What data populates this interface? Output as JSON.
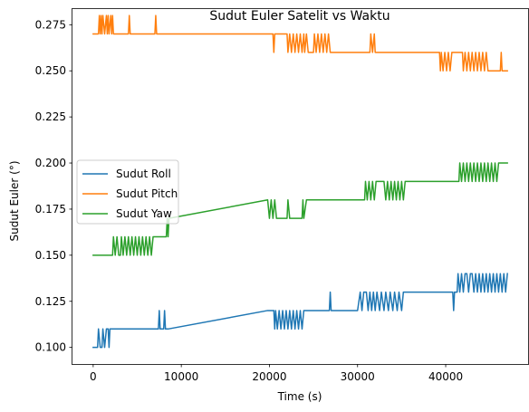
{
  "chart_data": {
    "type": "line",
    "title": "Sudut Euler Satelit vs Waktu",
    "xlabel": "Time (s)",
    "ylabel": "Sudut Euler (°)",
    "xlim": [
      -2350,
      49350
    ],
    "ylim": [
      0.091,
      0.2835
    ],
    "xticks": [
      0,
      10000,
      20000,
      30000,
      40000
    ],
    "xtick_labels": [
      "0",
      "10000",
      "20000",
      "30000",
      "40000"
    ],
    "yticks": [
      0.1,
      0.125,
      0.15,
      0.175,
      0.2,
      0.225,
      0.25,
      0.275
    ],
    "ytick_labels": [
      "0.100",
      "0.125",
      "0.150",
      "0.175",
      "0.200",
      "0.225",
      "0.250",
      "0.275"
    ],
    "grid": false,
    "legend_position": "center-left",
    "series": [
      {
        "name": "Sudut Roll",
        "color": "#1f77b4",
        "points": [
          [
            0,
            0.1
          ],
          [
            500,
            0.1
          ],
          [
            600,
            0.11
          ],
          [
            800,
            0.1
          ],
          [
            1000,
            0.1
          ],
          [
            1100,
            0.11
          ],
          [
            1300,
            0.1
          ],
          [
            1500,
            0.11
          ],
          [
            1700,
            0.11
          ],
          [
            1800,
            0.1
          ],
          [
            1900,
            0.11
          ],
          [
            2200,
            0.11
          ],
          [
            7400,
            0.11
          ],
          [
            7500,
            0.12
          ],
          [
            7600,
            0.11
          ],
          [
            8000,
            0.11
          ],
          [
            8100,
            0.12
          ],
          [
            8200,
            0.11
          ],
          [
            8500,
            0.11
          ],
          [
            19800,
            0.12
          ],
          [
            20500,
            0.12
          ],
          [
            20600,
            0.11
          ],
          [
            20700,
            0.12
          ],
          [
            20900,
            0.11
          ],
          [
            21100,
            0.12
          ],
          [
            21300,
            0.11
          ],
          [
            21500,
            0.12
          ],
          [
            21700,
            0.11
          ],
          [
            21900,
            0.12
          ],
          [
            22100,
            0.11
          ],
          [
            22300,
            0.12
          ],
          [
            22500,
            0.11
          ],
          [
            22700,
            0.12
          ],
          [
            22900,
            0.11
          ],
          [
            23100,
            0.12
          ],
          [
            23300,
            0.11
          ],
          [
            23500,
            0.12
          ],
          [
            23700,
            0.11
          ],
          [
            23900,
            0.12
          ],
          [
            24000,
            0.12
          ],
          [
            26800,
            0.12
          ],
          [
            26900,
            0.13
          ],
          [
            27000,
            0.12
          ],
          [
            30000,
            0.12
          ],
          [
            30300,
            0.13
          ],
          [
            30500,
            0.12
          ],
          [
            30700,
            0.13
          ],
          [
            31000,
            0.13
          ],
          [
            31200,
            0.12
          ],
          [
            31400,
            0.13
          ],
          [
            31600,
            0.12
          ],
          [
            31800,
            0.13
          ],
          [
            32000,
            0.12
          ],
          [
            32200,
            0.13
          ],
          [
            32500,
            0.12
          ],
          [
            32700,
            0.13
          ],
          [
            33000,
            0.12
          ],
          [
            33200,
            0.13
          ],
          [
            33500,
            0.12
          ],
          [
            33700,
            0.13
          ],
          [
            34000,
            0.12
          ],
          [
            34200,
            0.13
          ],
          [
            34500,
            0.12
          ],
          [
            34700,
            0.13
          ],
          [
            35000,
            0.12
          ],
          [
            35200,
            0.13
          ],
          [
            35400,
            0.13
          ],
          [
            40800,
            0.13
          ],
          [
            40900,
            0.12
          ],
          [
            41000,
            0.13
          ],
          [
            41300,
            0.13
          ],
          [
            41400,
            0.14
          ],
          [
            41600,
            0.13
          ],
          [
            41800,
            0.14
          ],
          [
            42000,
            0.13
          ],
          [
            42200,
            0.14
          ],
          [
            42400,
            0.14
          ],
          [
            42600,
            0.13
          ],
          [
            42800,
            0.14
          ],
          [
            43000,
            0.14
          ],
          [
            43200,
            0.13
          ],
          [
            43400,
            0.14
          ],
          [
            43600,
            0.13
          ],
          [
            43800,
            0.14
          ],
          [
            44000,
            0.13
          ],
          [
            44200,
            0.14
          ],
          [
            44400,
            0.13
          ],
          [
            44600,
            0.14
          ],
          [
            44800,
            0.13
          ],
          [
            45000,
            0.14
          ],
          [
            45200,
            0.13
          ],
          [
            45400,
            0.14
          ],
          [
            45600,
            0.13
          ],
          [
            45800,
            0.14
          ],
          [
            46000,
            0.13
          ],
          [
            46200,
            0.14
          ],
          [
            46400,
            0.13
          ],
          [
            46600,
            0.14
          ],
          [
            46800,
            0.13
          ],
          [
            47000,
            0.14
          ]
        ]
      },
      {
        "name": "Sudut Pitch",
        "color": "#ff7f0e",
        "points": [
          [
            0,
            0.27
          ],
          [
            600,
            0.27
          ],
          [
            700,
            0.28
          ],
          [
            800,
            0.27
          ],
          [
            900,
            0.28
          ],
          [
            1000,
            0.27
          ],
          [
            1100,
            0.28
          ],
          [
            1300,
            0.27
          ],
          [
            1500,
            0.28
          ],
          [
            1600,
            0.27
          ],
          [
            1700,
            0.28
          ],
          [
            1800,
            0.27
          ],
          [
            2000,
            0.28
          ],
          [
            2100,
            0.27
          ],
          [
            2200,
            0.28
          ],
          [
            2300,
            0.27
          ],
          [
            4000,
            0.27
          ],
          [
            4100,
            0.28
          ],
          [
            4200,
            0.27
          ],
          [
            7000,
            0.27
          ],
          [
            7100,
            0.28
          ],
          [
            7200,
            0.27
          ],
          [
            20400,
            0.27
          ],
          [
            20500,
            0.26
          ],
          [
            20600,
            0.27
          ],
          [
            22000,
            0.27
          ],
          [
            22100,
            0.26
          ],
          [
            22300,
            0.27
          ],
          [
            22500,
            0.26
          ],
          [
            22700,
            0.27
          ],
          [
            22900,
            0.26
          ],
          [
            23100,
            0.27
          ],
          [
            23300,
            0.26
          ],
          [
            23500,
            0.27
          ],
          [
            23700,
            0.26
          ],
          [
            23900,
            0.27
          ],
          [
            24000,
            0.26
          ],
          [
            24200,
            0.27
          ],
          [
            24400,
            0.26
          ],
          [
            25000,
            0.26
          ],
          [
            25100,
            0.27
          ],
          [
            25300,
            0.26
          ],
          [
            25500,
            0.27
          ],
          [
            25700,
            0.26
          ],
          [
            25900,
            0.27
          ],
          [
            26100,
            0.26
          ],
          [
            26300,
            0.27
          ],
          [
            26500,
            0.26
          ],
          [
            26700,
            0.27
          ],
          [
            26900,
            0.26
          ],
          [
            27000,
            0.26
          ],
          [
            31400,
            0.26
          ],
          [
            31500,
            0.27
          ],
          [
            31700,
            0.26
          ],
          [
            31900,
            0.27
          ],
          [
            32000,
            0.26
          ],
          [
            39300,
            0.26
          ],
          [
            39400,
            0.25
          ],
          [
            39500,
            0.26
          ],
          [
            39700,
            0.25
          ],
          [
            39900,
            0.26
          ],
          [
            40100,
            0.25
          ],
          [
            40300,
            0.26
          ],
          [
            40500,
            0.25
          ],
          [
            40700,
            0.26
          ],
          [
            40900,
            0.26
          ],
          [
            41900,
            0.26
          ],
          [
            42000,
            0.25
          ],
          [
            42200,
            0.26
          ],
          [
            42400,
            0.25
          ],
          [
            42600,
            0.26
          ],
          [
            42800,
            0.25
          ],
          [
            43000,
            0.26
          ],
          [
            43200,
            0.25
          ],
          [
            43400,
            0.26
          ],
          [
            43600,
            0.25
          ],
          [
            43800,
            0.26
          ],
          [
            44000,
            0.25
          ],
          [
            44200,
            0.26
          ],
          [
            44400,
            0.25
          ],
          [
            44600,
            0.26
          ],
          [
            44800,
            0.25
          ],
          [
            46200,
            0.25
          ],
          [
            46300,
            0.26
          ],
          [
            46400,
            0.25
          ],
          [
            47000,
            0.25
          ]
        ]
      },
      {
        "name": "Sudut Yaw",
        "color": "#2ca02c",
        "points": [
          [
            0,
            0.15
          ],
          [
            2200,
            0.15
          ],
          [
            2300,
            0.16
          ],
          [
            2500,
            0.15
          ],
          [
            2700,
            0.16
          ],
          [
            2900,
            0.15
          ],
          [
            3100,
            0.15
          ],
          [
            3200,
            0.16
          ],
          [
            3400,
            0.15
          ],
          [
            3600,
            0.16
          ],
          [
            3800,
            0.15
          ],
          [
            4000,
            0.16
          ],
          [
            4200,
            0.15
          ],
          [
            4400,
            0.16
          ],
          [
            4600,
            0.15
          ],
          [
            4800,
            0.16
          ],
          [
            5000,
            0.15
          ],
          [
            5200,
            0.16
          ],
          [
            5400,
            0.15
          ],
          [
            5600,
            0.16
          ],
          [
            5800,
            0.15
          ],
          [
            6000,
            0.16
          ],
          [
            6200,
            0.15
          ],
          [
            6400,
            0.16
          ],
          [
            6600,
            0.15
          ],
          [
            6800,
            0.16
          ],
          [
            8300,
            0.16
          ],
          [
            8400,
            0.17
          ],
          [
            8500,
            0.16
          ],
          [
            8600,
            0.17
          ],
          [
            19800,
            0.18
          ],
          [
            20000,
            0.17
          ],
          [
            20200,
            0.18
          ],
          [
            20400,
            0.17
          ],
          [
            20600,
            0.18
          ],
          [
            20800,
            0.17
          ],
          [
            21000,
            0.17
          ],
          [
            22000,
            0.17
          ],
          [
            22100,
            0.18
          ],
          [
            22300,
            0.17
          ],
          [
            23700,
            0.17
          ],
          [
            23800,
            0.18
          ],
          [
            23900,
            0.17
          ],
          [
            24200,
            0.18
          ],
          [
            30000,
            0.18
          ],
          [
            30800,
            0.18
          ],
          [
            30900,
            0.19
          ],
          [
            31100,
            0.18
          ],
          [
            31300,
            0.19
          ],
          [
            31500,
            0.18
          ],
          [
            31700,
            0.19
          ],
          [
            31900,
            0.18
          ],
          [
            32100,
            0.19
          ],
          [
            33000,
            0.19
          ],
          [
            33200,
            0.18
          ],
          [
            33400,
            0.19
          ],
          [
            33600,
            0.18
          ],
          [
            33800,
            0.19
          ],
          [
            34000,
            0.18
          ],
          [
            34200,
            0.19
          ],
          [
            34400,
            0.18
          ],
          [
            34600,
            0.19
          ],
          [
            34800,
            0.18
          ],
          [
            35000,
            0.19
          ],
          [
            35200,
            0.18
          ],
          [
            35400,
            0.19
          ],
          [
            41500,
            0.19
          ],
          [
            41600,
            0.2
          ],
          [
            41800,
            0.19
          ],
          [
            42000,
            0.2
          ],
          [
            42200,
            0.19
          ],
          [
            42400,
            0.2
          ],
          [
            42600,
            0.19
          ],
          [
            42800,
            0.2
          ],
          [
            43000,
            0.19
          ],
          [
            43200,
            0.2
          ],
          [
            43400,
            0.19
          ],
          [
            43600,
            0.2
          ],
          [
            43800,
            0.19
          ],
          [
            44000,
            0.2
          ],
          [
            44200,
            0.19
          ],
          [
            44400,
            0.2
          ],
          [
            44600,
            0.19
          ],
          [
            44800,
            0.2
          ],
          [
            45000,
            0.19
          ],
          [
            45200,
            0.2
          ],
          [
            45400,
            0.19
          ],
          [
            45600,
            0.2
          ],
          [
            45800,
            0.19
          ],
          [
            46000,
            0.2
          ],
          [
            47000,
            0.2
          ]
        ]
      }
    ]
  }
}
